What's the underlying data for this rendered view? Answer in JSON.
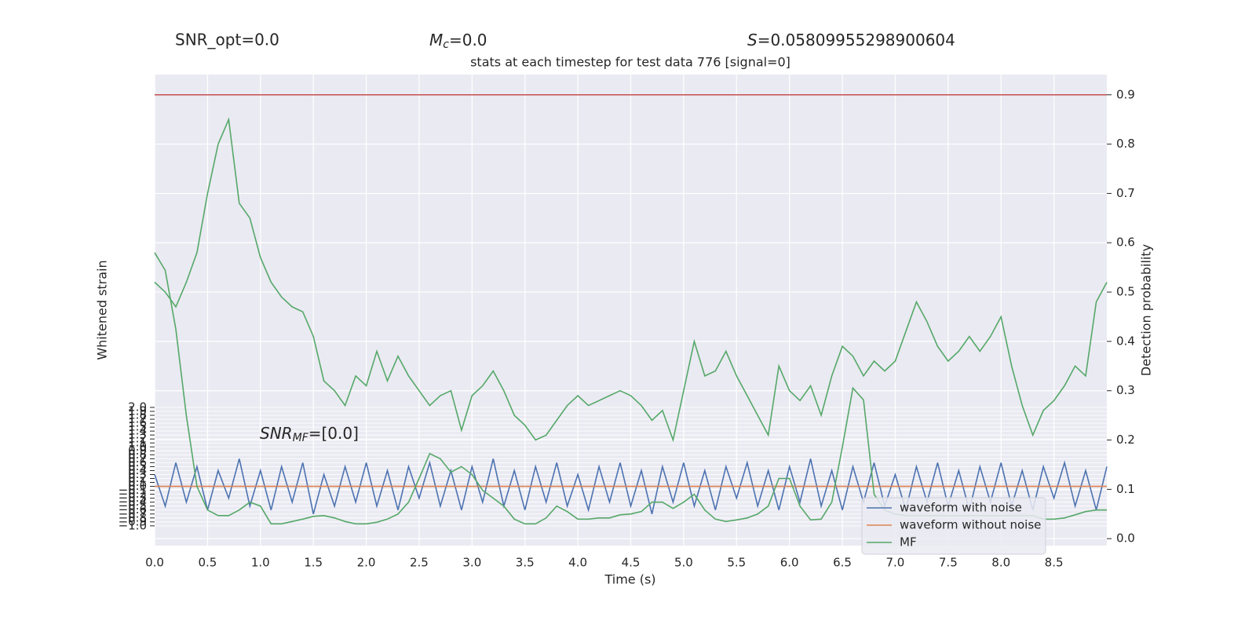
{
  "chart_data": {
    "type": "line",
    "title": "stats at each timestep for test data 776 [signal=0]",
    "annotations": [
      {
        "text": "SNR_opt=0.0"
      },
      {
        "symbol": "M",
        "subscript": "c",
        "text": "=0.0"
      },
      {
        "symbol": "S",
        "text": "=0.05809955298900604"
      }
    ],
    "inner_annotation": {
      "symbol": "SNR",
      "subscript": "MF",
      "text": "=[0.0]"
    },
    "xlabel": "Time (s)",
    "ylabel": "Whitened strain",
    "y2label": "Detection probability",
    "xlim": [
      0,
      9
    ],
    "xticks": [
      {
        "value": 0,
        "label": "0.0"
      },
      0.5,
      {
        "value": 1,
        "label": "1.0"
      },
      1.5,
      {
        "value": 2,
        "label": "2.0"
      },
      2.5,
      {
        "value": 3,
        "label": "3.0"
      },
      3.5,
      {
        "value": 4,
        "label": "4.0"
      },
      4.5,
      {
        "value": 5,
        "label": "5.0"
      },
      5.5,
      {
        "value": 6,
        "label": "6.0"
      },
      6.5,
      {
        "value": 7,
        "label": "7.0"
      },
      7.5,
      {
        "value": 8,
        "label": "8.0"
      },
      8.5
    ],
    "ylim": [
      -1.5,
      10.43
    ],
    "yticks": [
      {
        "value": -1,
        "label": "−1.0"
      },
      {
        "value": -0.9,
        "label": "−0.9"
      },
      {
        "value": -0.8,
        "label": "−0.8"
      },
      {
        "value": -0.7,
        "label": "−0.7"
      },
      {
        "value": -0.6,
        "label": "−0.6"
      },
      {
        "value": -0.5,
        "label": "−0.5"
      },
      {
        "value": -0.4,
        "label": "−0.4"
      },
      {
        "value": -0.3,
        "label": "−0.3"
      },
      {
        "value": -0.2,
        "label": "−0.2"
      },
      {
        "value": -0.1,
        "label": "−0.1"
      },
      {
        "value": 0,
        "label": "0.0"
      },
      0.1,
      0.2,
      0.3,
      0.4,
      0.5,
      0.6,
      0.7,
      0.8,
      0.9,
      {
        "value": 1,
        "label": "1.0"
      },
      1.1,
      1.2,
      1.3,
      1.4,
      1.5,
      1.6,
      1.7,
      1.8,
      1.9,
      {
        "value": 2,
        "label": "2.0"
      }
    ],
    "y2lim": [
      -0.014,
      0.941
    ],
    "y2ticks": [
      {
        "value": 0,
        "label": "0.0"
      },
      0.1,
      0.2,
      0.3,
      0.4,
      0.5,
      0.6,
      0.7,
      0.8,
      0.9
    ],
    "grid": true,
    "legend": "lower right",
    "hlines": [
      {
        "value": 0.9,
        "color": "#c44e52",
        "axis": "y2"
      }
    ],
    "x": [
      0,
      0.1,
      0.2,
      0.3,
      0.4,
      0.5,
      0.6,
      0.7,
      0.8,
      0.9,
      1,
      1.1,
      1.2,
      1.3,
      1.4,
      1.5,
      1.6,
      1.7,
      1.8,
      1.9,
      2,
      2.1,
      2.2,
      2.3,
      2.4,
      2.5,
      2.6,
      2.7,
      2.8,
      2.9,
      3,
      3.1,
      3.2,
      3.3,
      3.4,
      3.5,
      3.6,
      3.7,
      3.8,
      3.9,
      4,
      4.1,
      4.2,
      4.3,
      4.4,
      4.5,
      4.6,
      4.7,
      4.8,
      4.9,
      5,
      5.1,
      5.2,
      5.3,
      5.4,
      5.5,
      5.6,
      5.7,
      5.8,
      5.9,
      6,
      6.1,
      6.2,
      6.3,
      6.4,
      6.5,
      6.6,
      6.7,
      6.8,
      6.9,
      7,
      7.1,
      7.2,
      7.3,
      7.4,
      7.5,
      7.6,
      7.7,
      7.8,
      7.9,
      8,
      8.1,
      8.2,
      8.3,
      8.4,
      8.5,
      8.6,
      8.7,
      8.8,
      8.9,
      9
    ],
    "series": [
      {
        "name": "waveform with noise",
        "color": "#4c72b0",
        "axis": "y",
        "values": [
          0.3,
          -0.5,
          0.6,
          -0.4,
          0.5,
          -0.6,
          0.4,
          -0.3,
          0.7,
          -0.5,
          0.4,
          -0.6,
          0.5,
          -0.4,
          0.6,
          -0.7,
          0.3,
          -0.5,
          0.5,
          -0.4,
          0.6,
          -0.5,
          0.4,
          -0.6,
          0.5,
          -0.3,
          0.6,
          -0.5,
          0.4,
          -0.6,
          0.5,
          -0.4,
          0.7,
          -0.5,
          0.4,
          -0.6,
          0.5,
          -0.4,
          0.6,
          -0.5,
          0.3,
          -0.6,
          0.5,
          -0.4,
          0.6,
          -0.5,
          0.4,
          -0.7,
          0.5,
          -0.4,
          0.6,
          -0.5,
          0.4,
          -0.6,
          0.5,
          -0.3,
          0.6,
          -0.5,
          0.4,
          -0.6,
          0.5,
          -0.4,
          0.7,
          -0.5,
          0.4,
          -0.6,
          0.5,
          -0.4,
          0.6,
          -0.5,
          0.3,
          -0.6,
          0.5,
          -0.4,
          0.6,
          -0.5,
          0.4,
          -0.6,
          0.5,
          -0.4,
          0.6,
          -0.5,
          0.4,
          -0.6,
          0.5,
          -0.3,
          0.6,
          -0.5,
          0.4,
          -0.6,
          0.5
        ]
      },
      {
        "name": "waveform without noise",
        "color": "#dd8452",
        "axis": "y",
        "values": [
          0,
          0,
          0,
          0,
          0,
          0,
          0,
          0,
          0,
          0,
          0,
          0,
          0,
          0,
          0,
          0,
          0,
          0,
          0,
          0,
          0,
          0,
          0,
          0,
          0,
          0,
          0,
          0,
          0,
          0,
          0,
          0,
          0,
          0,
          0,
          0,
          0,
          0,
          0,
          0,
          0,
          0,
          0,
          0,
          0,
          0,
          0,
          0,
          0,
          0,
          0,
          0,
          0,
          0,
          0,
          0,
          0,
          0,
          0,
          0,
          0,
          0,
          0,
          0,
          0,
          0,
          0,
          0,
          0,
          0,
          0,
          0,
          0,
          0,
          0,
          0,
          0,
          0,
          0,
          0,
          0,
          0,
          0,
          0,
          0,
          0,
          0,
          0,
          0,
          0,
          0
        ]
      },
      {
        "name": "MF",
        "color": "#55a868",
        "axis": "y",
        "values": [
          5.92,
          5.47,
          3.98,
          1.79,
          0,
          -0.6,
          -0.74,
          -0.74,
          -0.6,
          -0.4,
          -0.5,
          -0.95,
          -0.95,
          -0.89,
          -0.83,
          -0.76,
          -0.74,
          -0.8,
          -0.89,
          -0.95,
          -0.95,
          -0.91,
          -0.83,
          -0.7,
          -0.4,
          0.2,
          0.83,
          0.7,
          0.36,
          0.5,
          0.3,
          -0.1,
          -0.3,
          -0.5,
          -0.83,
          -0.95,
          -0.95,
          -0.8,
          -0.5,
          -0.64,
          -0.83,
          -0.83,
          -0.8,
          -0.8,
          -0.72,
          -0.7,
          -0.64,
          -0.4,
          -0.4,
          -0.56,
          -0.4,
          -0.2,
          -0.6,
          -0.83,
          -0.89,
          -0.85,
          -0.8,
          -0.7,
          -0.5,
          0.2,
          0.2,
          -0.5,
          -0.85,
          -0.83,
          -0.4,
          1,
          2.49,
          2.19,
          -0.2,
          -0.6,
          -0.7,
          -0.74,
          -0.74,
          -0.74,
          -0.74,
          -0.74,
          -0.74,
          -0.74,
          -0.74,
          -0.74,
          -0.74,
          -0.74,
          -0.74,
          -0.74,
          -0.83,
          -0.83,
          -0.8,
          -0.72,
          -0.64,
          -0.6,
          -0.6
        ]
      },
      {
        "color": "#55a868",
        "axis": "y2",
        "values": [
          0.52,
          0.5,
          0.47,
          0.52,
          0.58,
          0.7,
          0.8,
          0.85,
          0.68,
          0.65,
          0.57,
          0.52,
          0.49,
          0.47,
          0.46,
          0.41,
          0.32,
          0.3,
          0.27,
          0.33,
          0.31,
          0.38,
          0.32,
          0.37,
          0.33,
          0.3,
          0.27,
          0.29,
          0.3,
          0.22,
          0.29,
          0.31,
          0.34,
          0.3,
          0.25,
          0.23,
          0.2,
          0.21,
          0.24,
          0.27,
          0.29,
          0.27,
          0.28,
          0.29,
          0.3,
          0.29,
          0.27,
          0.24,
          0.26,
          0.2,
          0.3,
          0.4,
          0.33,
          0.34,
          0.38,
          0.33,
          0.29,
          0.25,
          0.21,
          0.35,
          0.3,
          0.28,
          0.31,
          0.25,
          0.33,
          0.39,
          0.37,
          0.33,
          0.36,
          0.34,
          0.36,
          0.42,
          0.48,
          0.44,
          0.39,
          0.36,
          0.38,
          0.41,
          0.38,
          0.41,
          0.45,
          0.35,
          0.27,
          0.21,
          0.26,
          0.28,
          0.31,
          0.35,
          0.33,
          0.48,
          0.52
        ]
      }
    ]
  }
}
